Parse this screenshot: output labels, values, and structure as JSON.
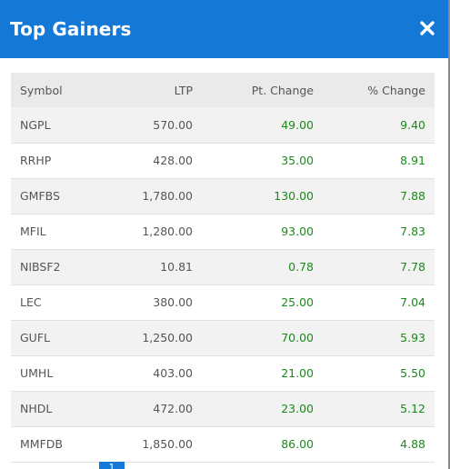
{
  "modal": {
    "title": "Top Gainers",
    "close_icon": "close-icon"
  },
  "table": {
    "headers": {
      "symbol": "Symbol",
      "ltp": "LTP",
      "pt_change": "Pt. Change",
      "pct_change": "% Change"
    },
    "rows": [
      {
        "symbol": "NGPL",
        "ltp": "570.00",
        "pt_change": "49.00",
        "pct_change": "9.40"
      },
      {
        "symbol": "RRHP",
        "ltp": "428.00",
        "pt_change": "35.00",
        "pct_change": "8.91"
      },
      {
        "symbol": "GMFBS",
        "ltp": "1,780.00",
        "pt_change": "130.00",
        "pct_change": "7.88"
      },
      {
        "symbol": "MFIL",
        "ltp": "1,280.00",
        "pt_change": "93.00",
        "pct_change": "7.83"
      },
      {
        "symbol": "NIBSF2",
        "ltp": "10.81",
        "pt_change": "0.78",
        "pct_change": "7.78"
      },
      {
        "symbol": "LEC",
        "ltp": "380.00",
        "pt_change": "25.00",
        "pct_change": "7.04"
      },
      {
        "symbol": "GUFL",
        "ltp": "1,250.00",
        "pt_change": "70.00",
        "pct_change": "5.93"
      },
      {
        "symbol": "UMHL",
        "ltp": "403.00",
        "pt_change": "21.00",
        "pct_change": "5.50"
      },
      {
        "symbol": "NHDL",
        "ltp": "472.00",
        "pt_change": "23.00",
        "pct_change": "5.12"
      },
      {
        "symbol": "MMFDB",
        "ltp": "1,850.00",
        "pt_change": "86.00",
        "pct_change": "4.88"
      }
    ]
  },
  "pagination": {
    "active_page": "1"
  },
  "colors": {
    "header_bg": "#1378d6",
    "positive": "#1b8a1b",
    "row_alt": "#f2f2f2"
  }
}
